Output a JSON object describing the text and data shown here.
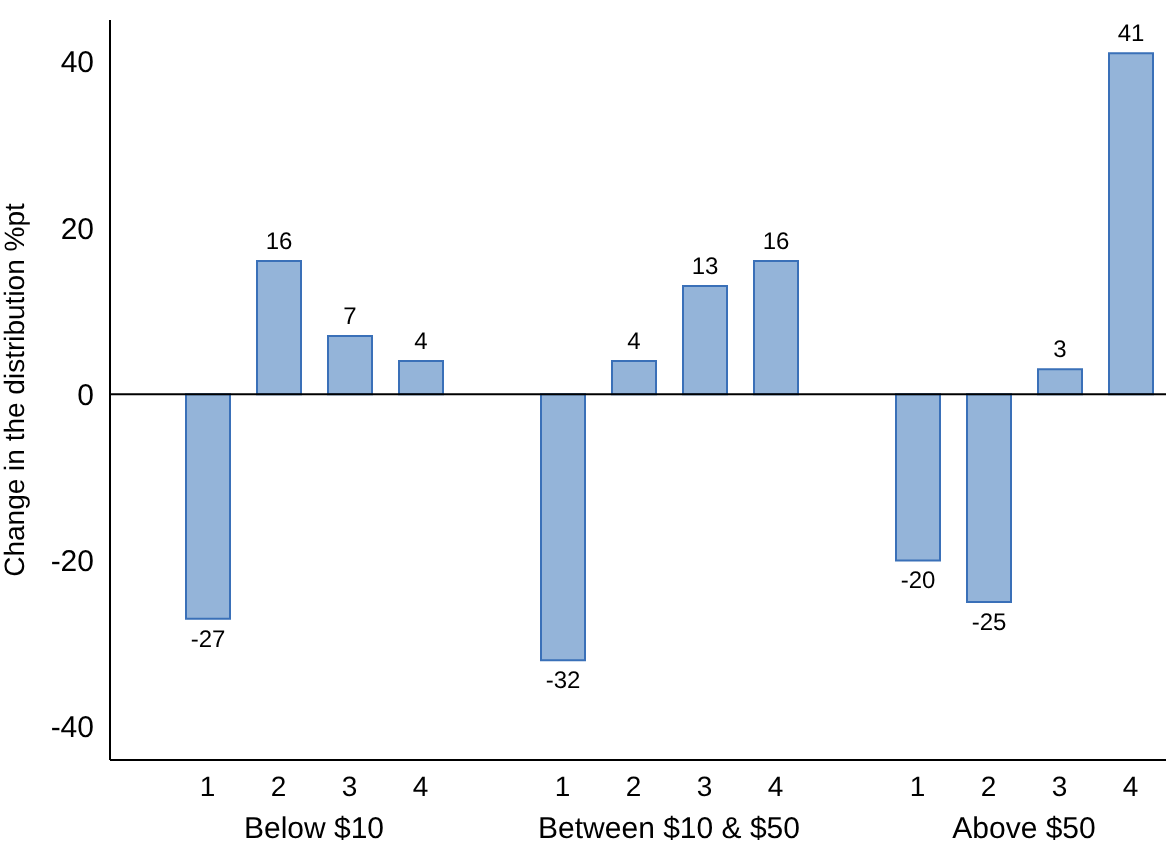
{
  "chart_data": {
    "type": "bar",
    "ylabel": "Change in the distribution %pt",
    "categories": [
      "1",
      "2",
      "3",
      "4",
      null,
      "1",
      "2",
      "3",
      "4",
      null,
      "1",
      "2",
      "3",
      "4"
    ],
    "values": [
      -27,
      16,
      7,
      4,
      null,
      -32,
      4,
      13,
      16,
      null,
      -20,
      -25,
      3,
      41
    ],
    "color": "#94b4d9",
    "ylim": [
      -44,
      45
    ],
    "yticks": [
      -40,
      -20,
      0,
      20,
      40
    ],
    "annotations": [
      "Below $10",
      "Between $10 & $50",
      "Above $50"
    ],
    "ref_lines": [
      {
        "axis": "y",
        "value": 0,
        "color": "#000000"
      }
    ],
    "data_labels": true,
    "legend": false
  }
}
